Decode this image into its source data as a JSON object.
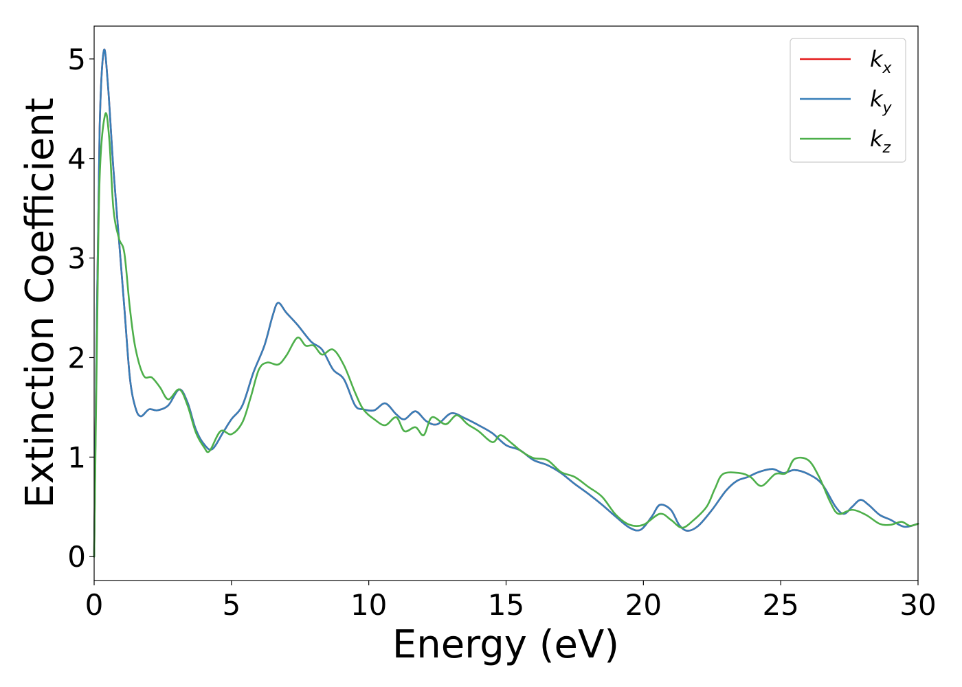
{
  "chart_data": {
    "type": "line",
    "xlabel": "Energy (eV)",
    "ylabel": "Extinction Coefficient",
    "xlim": [
      0,
      30
    ],
    "ylim": [
      -0.24,
      5.33
    ],
    "x_ticks": [
      "0",
      "5",
      "10",
      "15",
      "20",
      "25",
      "30"
    ],
    "y_ticks": [
      "0",
      "1",
      "2",
      "3",
      "4",
      "5"
    ],
    "grid": false,
    "legend_position": "top-right",
    "series": [
      {
        "name": "k",
        "subscript": "x",
        "color": "#e41a1c",
        "points": [
          [
            0,
            0
          ],
          [
            0.1,
            2.4
          ],
          [
            0.2,
            4.3
          ],
          [
            0.35,
            5.08
          ],
          [
            0.5,
            4.75
          ],
          [
            0.7,
            3.9
          ],
          [
            0.9,
            3.2
          ],
          [
            1.1,
            2.5
          ],
          [
            1.3,
            1.8
          ],
          [
            1.5,
            1.5
          ],
          [
            1.7,
            1.41
          ],
          [
            2.0,
            1.48
          ],
          [
            2.3,
            1.47
          ],
          [
            2.7,
            1.52
          ],
          [
            3.1,
            1.68
          ],
          [
            3.4,
            1.55
          ],
          [
            3.7,
            1.28
          ],
          [
            4.0,
            1.13
          ],
          [
            4.3,
            1.08
          ],
          [
            4.7,
            1.25
          ],
          [
            5.0,
            1.38
          ],
          [
            5.4,
            1.52
          ],
          [
            5.8,
            1.85
          ],
          [
            6.2,
            2.12
          ],
          [
            6.5,
            2.42
          ],
          [
            6.7,
            2.55
          ],
          [
            7.0,
            2.45
          ],
          [
            7.4,
            2.33
          ],
          [
            7.9,
            2.16
          ],
          [
            8.3,
            2.08
          ],
          [
            8.7,
            1.88
          ],
          [
            9.1,
            1.78
          ],
          [
            9.5,
            1.52
          ],
          [
            9.8,
            1.48
          ],
          [
            10.2,
            1.47
          ],
          [
            10.6,
            1.54
          ],
          [
            11.0,
            1.43
          ],
          [
            11.3,
            1.38
          ],
          [
            11.7,
            1.46
          ],
          [
            12.1,
            1.36
          ],
          [
            12.5,
            1.33
          ],
          [
            13.0,
            1.44
          ],
          [
            13.5,
            1.39
          ],
          [
            14.0,
            1.32
          ],
          [
            14.5,
            1.24
          ],
          [
            15.0,
            1.12
          ],
          [
            15.5,
            1.07
          ],
          [
            16.0,
            0.97
          ],
          [
            16.5,
            0.92
          ],
          [
            17.0,
            0.84
          ],
          [
            17.5,
            0.73
          ],
          [
            18.0,
            0.63
          ],
          [
            18.5,
            0.52
          ],
          [
            19.0,
            0.4
          ],
          [
            19.5,
            0.29
          ],
          [
            19.9,
            0.27
          ],
          [
            20.3,
            0.4
          ],
          [
            20.6,
            0.52
          ],
          [
            21.0,
            0.47
          ],
          [
            21.3,
            0.32
          ],
          [
            21.6,
            0.26
          ],
          [
            22.0,
            0.31
          ],
          [
            22.5,
            0.47
          ],
          [
            23.0,
            0.66
          ],
          [
            23.4,
            0.76
          ],
          [
            23.8,
            0.8
          ],
          [
            24.2,
            0.85
          ],
          [
            24.7,
            0.88
          ],
          [
            25.1,
            0.84
          ],
          [
            25.5,
            0.87
          ],
          [
            26.0,
            0.83
          ],
          [
            26.5,
            0.73
          ],
          [
            27.0,
            0.5
          ],
          [
            27.3,
            0.43
          ],
          [
            27.6,
            0.5
          ],
          [
            27.9,
            0.57
          ],
          [
            28.2,
            0.52
          ],
          [
            28.6,
            0.42
          ],
          [
            29.0,
            0.37
          ],
          [
            29.5,
            0.3
          ],
          [
            30.0,
            0.33
          ]
        ]
      },
      {
        "name": "k",
        "subscript": "y",
        "color": "#377eb8",
        "points": [
          [
            0,
            0
          ],
          [
            0.1,
            2.4
          ],
          [
            0.2,
            4.3
          ],
          [
            0.35,
            5.08
          ],
          [
            0.5,
            4.75
          ],
          [
            0.7,
            3.9
          ],
          [
            0.9,
            3.2
          ],
          [
            1.1,
            2.5
          ],
          [
            1.3,
            1.8
          ],
          [
            1.5,
            1.5
          ],
          [
            1.7,
            1.41
          ],
          [
            2.0,
            1.48
          ],
          [
            2.3,
            1.47
          ],
          [
            2.7,
            1.52
          ],
          [
            3.1,
            1.68
          ],
          [
            3.4,
            1.55
          ],
          [
            3.7,
            1.28
          ],
          [
            4.0,
            1.13
          ],
          [
            4.3,
            1.08
          ],
          [
            4.7,
            1.25
          ],
          [
            5.0,
            1.38
          ],
          [
            5.4,
            1.52
          ],
          [
            5.8,
            1.85
          ],
          [
            6.2,
            2.12
          ],
          [
            6.5,
            2.42
          ],
          [
            6.7,
            2.55
          ],
          [
            7.0,
            2.45
          ],
          [
            7.4,
            2.33
          ],
          [
            7.9,
            2.16
          ],
          [
            8.3,
            2.08
          ],
          [
            8.7,
            1.88
          ],
          [
            9.1,
            1.78
          ],
          [
            9.5,
            1.52
          ],
          [
            9.8,
            1.48
          ],
          [
            10.2,
            1.47
          ],
          [
            10.6,
            1.54
          ],
          [
            11.0,
            1.43
          ],
          [
            11.3,
            1.38
          ],
          [
            11.7,
            1.46
          ],
          [
            12.1,
            1.36
          ],
          [
            12.5,
            1.33
          ],
          [
            13.0,
            1.44
          ],
          [
            13.5,
            1.39
          ],
          [
            14.0,
            1.32
          ],
          [
            14.5,
            1.24
          ],
          [
            15.0,
            1.12
          ],
          [
            15.5,
            1.07
          ],
          [
            16.0,
            0.97
          ],
          [
            16.5,
            0.92
          ],
          [
            17.0,
            0.84
          ],
          [
            17.5,
            0.73
          ],
          [
            18.0,
            0.63
          ],
          [
            18.5,
            0.52
          ],
          [
            19.0,
            0.4
          ],
          [
            19.5,
            0.29
          ],
          [
            19.9,
            0.27
          ],
          [
            20.3,
            0.4
          ],
          [
            20.6,
            0.52
          ],
          [
            21.0,
            0.47
          ],
          [
            21.3,
            0.32
          ],
          [
            21.6,
            0.26
          ],
          [
            22.0,
            0.31
          ],
          [
            22.5,
            0.47
          ],
          [
            23.0,
            0.66
          ],
          [
            23.4,
            0.76
          ],
          [
            23.8,
            0.8
          ],
          [
            24.2,
            0.85
          ],
          [
            24.7,
            0.88
          ],
          [
            25.1,
            0.84
          ],
          [
            25.5,
            0.87
          ],
          [
            26.0,
            0.83
          ],
          [
            26.5,
            0.73
          ],
          [
            27.0,
            0.5
          ],
          [
            27.3,
            0.43
          ],
          [
            27.6,
            0.5
          ],
          [
            27.9,
            0.57
          ],
          [
            28.2,
            0.52
          ],
          [
            28.6,
            0.42
          ],
          [
            29.0,
            0.37
          ],
          [
            29.5,
            0.3
          ],
          [
            30.0,
            0.33
          ]
        ]
      },
      {
        "name": "k",
        "subscript": "z",
        "color": "#4daf4a",
        "points": [
          [
            0,
            0
          ],
          [
            0.1,
            2.1
          ],
          [
            0.2,
            3.8
          ],
          [
            0.4,
            4.44
          ],
          [
            0.55,
            4.2
          ],
          [
            0.7,
            3.5
          ],
          [
            0.9,
            3.2
          ],
          [
            1.1,
            3.05
          ],
          [
            1.3,
            2.5
          ],
          [
            1.5,
            2.1
          ],
          [
            1.8,
            1.82
          ],
          [
            2.1,
            1.8
          ],
          [
            2.4,
            1.7
          ],
          [
            2.7,
            1.58
          ],
          [
            3.1,
            1.68
          ],
          [
            3.4,
            1.52
          ],
          [
            3.7,
            1.25
          ],
          [
            4.0,
            1.1
          ],
          [
            4.2,
            1.06
          ],
          [
            4.6,
            1.26
          ],
          [
            5.0,
            1.23
          ],
          [
            5.4,
            1.35
          ],
          [
            5.7,
            1.6
          ],
          [
            6.0,
            1.88
          ],
          [
            6.3,
            1.95
          ],
          [
            6.7,
            1.93
          ],
          [
            7.0,
            2.02
          ],
          [
            7.4,
            2.2
          ],
          [
            7.7,
            2.12
          ],
          [
            8.0,
            2.12
          ],
          [
            8.3,
            2.03
          ],
          [
            8.7,
            2.08
          ],
          [
            9.1,
            1.92
          ],
          [
            9.5,
            1.65
          ],
          [
            9.8,
            1.48
          ],
          [
            10.2,
            1.38
          ],
          [
            10.6,
            1.32
          ],
          [
            11.0,
            1.4
          ],
          [
            11.3,
            1.26
          ],
          [
            11.7,
            1.3
          ],
          [
            12.0,
            1.22
          ],
          [
            12.3,
            1.4
          ],
          [
            12.8,
            1.33
          ],
          [
            13.2,
            1.42
          ],
          [
            13.6,
            1.33
          ],
          [
            14.0,
            1.26
          ],
          [
            14.5,
            1.15
          ],
          [
            14.8,
            1.22
          ],
          [
            15.2,
            1.14
          ],
          [
            15.6,
            1.05
          ],
          [
            16.0,
            0.99
          ],
          [
            16.5,
            0.97
          ],
          [
            17.0,
            0.85
          ],
          [
            17.5,
            0.8
          ],
          [
            18.0,
            0.7
          ],
          [
            18.5,
            0.6
          ],
          [
            19.0,
            0.42
          ],
          [
            19.5,
            0.32
          ],
          [
            20.0,
            0.32
          ],
          [
            20.6,
            0.43
          ],
          [
            21.0,
            0.37
          ],
          [
            21.4,
            0.29
          ],
          [
            21.8,
            0.36
          ],
          [
            22.3,
            0.5
          ],
          [
            22.6,
            0.68
          ],
          [
            22.9,
            0.83
          ],
          [
            23.5,
            0.84
          ],
          [
            23.9,
            0.8
          ],
          [
            24.3,
            0.71
          ],
          [
            24.8,
            0.83
          ],
          [
            25.2,
            0.84
          ],
          [
            25.5,
            0.98
          ],
          [
            26.0,
            0.97
          ],
          [
            26.4,
            0.8
          ],
          [
            26.8,
            0.55
          ],
          [
            27.1,
            0.43
          ],
          [
            27.6,
            0.47
          ],
          [
            28.1,
            0.42
          ],
          [
            28.6,
            0.33
          ],
          [
            29.0,
            0.32
          ],
          [
            29.4,
            0.35
          ],
          [
            29.7,
            0.31
          ],
          [
            30.0,
            0.33
          ]
        ]
      }
    ]
  }
}
